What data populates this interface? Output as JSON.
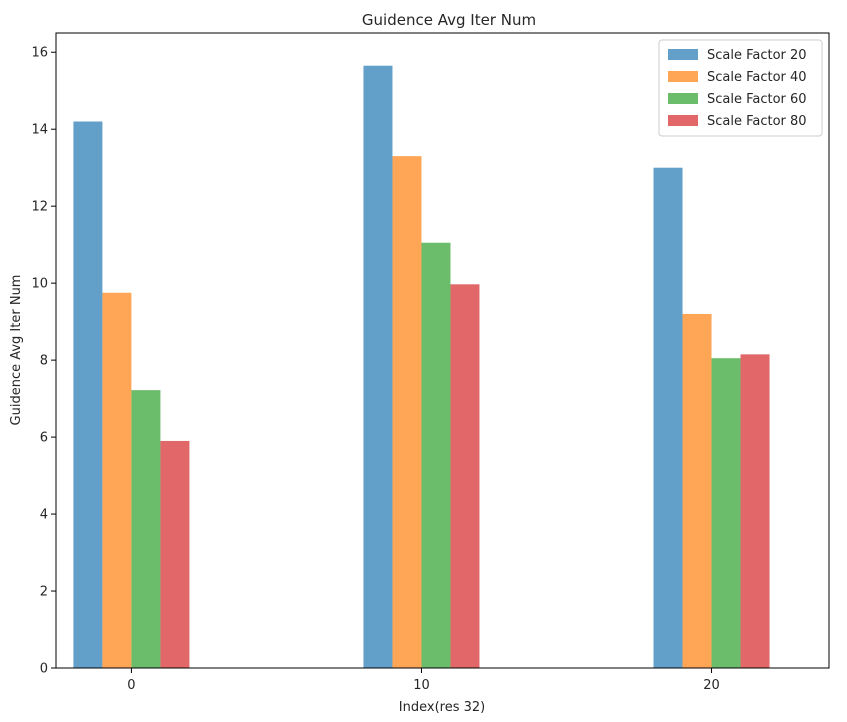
{
  "chart_data": {
    "type": "bar",
    "title": "Guidence Avg Iter Num",
    "xlabel": "Index(res 32)",
    "ylabel": "Guidence Avg Iter Num",
    "categories": [
      "0",
      "10",
      "20"
    ],
    "x": [
      0,
      10,
      20
    ],
    "ylim": [
      0,
      16.5
    ],
    "yticks": [
      "0",
      "2",
      "4",
      "6",
      "8",
      "10",
      "12",
      "14",
      "16"
    ],
    "grid": false,
    "legend_position": "top-right",
    "series": [
      {
        "name": "Scale Factor 20",
        "color": "#1f77b4",
        "values": [
          14.2,
          15.65,
          13.0
        ]
      },
      {
        "name": "Scale Factor 40",
        "color": "#ff7f0e",
        "values": [
          9.75,
          13.3,
          9.2
        ]
      },
      {
        "name": "Scale Factor 60",
        "color": "#2ca02c",
        "values": [
          7.22,
          11.05,
          8.05
        ]
      },
      {
        "name": "Scale Factor 80",
        "color": "#d62728",
        "values": [
          5.9,
          9.97,
          8.15
        ]
      }
    ]
  }
}
